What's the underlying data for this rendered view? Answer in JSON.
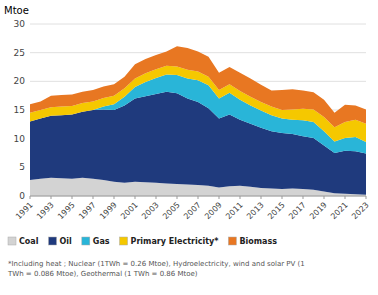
{
  "chart_data": {
    "type": "area",
    "stacked": true,
    "ylabel": "Mtoe",
    "x": [
      1991,
      1992,
      1993,
      1994,
      1995,
      1996,
      1997,
      1998,
      1999,
      2000,
      2001,
      2002,
      2003,
      2004,
      2005,
      2006,
      2007,
      2008,
      2009,
      2010,
      2011,
      2012,
      2013,
      2014,
      2015,
      2016,
      2017,
      2018,
      2019,
      2020,
      2021,
      2022,
      2023
    ],
    "series": [
      {
        "name": "Coal",
        "color": "#d3d3d3",
        "values": [
          2.8,
          3.0,
          3.2,
          3.1,
          3.0,
          3.2,
          3.0,
          2.8,
          2.5,
          2.3,
          2.5,
          2.4,
          2.3,
          2.2,
          2.1,
          2.0,
          1.9,
          1.8,
          1.5,
          1.7,
          1.8,
          1.6,
          1.4,
          1.3,
          1.2,
          1.3,
          1.2,
          1.1,
          0.8,
          0.5,
          0.4,
          0.3,
          0.2
        ]
      },
      {
        "name": "Oil",
        "color": "#1f3a7d",
        "values": [
          10.2,
          10.5,
          10.8,
          11.0,
          11.2,
          11.5,
          12.0,
          12.3,
          12.5,
          13.5,
          14.5,
          15.0,
          15.5,
          16.0,
          15.8,
          15.0,
          14.5,
          13.5,
          12.0,
          12.5,
          11.5,
          11.0,
          10.5,
          10.0,
          9.8,
          9.5,
          9.2,
          9.0,
          8.0,
          7.0,
          7.5,
          7.5,
          7.2
        ]
      },
      {
        "name": "Gas",
        "color": "#29b5d8",
        "values": [
          0.0,
          0.0,
          0.0,
          0.0,
          0.0,
          0.0,
          0.0,
          0.5,
          1.0,
          1.5,
          2.0,
          2.5,
          2.8,
          3.0,
          3.2,
          3.5,
          3.8,
          4.0,
          3.5,
          3.8,
          3.5,
          3.2,
          3.0,
          2.8,
          2.5,
          2.5,
          2.8,
          2.8,
          2.5,
          2.0,
          2.2,
          2.5,
          2.0
        ]
      },
      {
        "name": "Primary Electricity*",
        "color": "#f5c800",
        "values": [
          1.5,
          1.5,
          1.5,
          1.5,
          1.5,
          1.5,
          1.5,
          1.5,
          1.5,
          1.5,
          1.5,
          1.5,
          1.5,
          1.5,
          1.5,
          1.5,
          1.5,
          1.5,
          1.5,
          1.5,
          1.5,
          1.5,
          1.5,
          1.5,
          1.5,
          1.8,
          2.0,
          2.2,
          2.5,
          2.5,
          2.8,
          3.0,
          3.2
        ]
      },
      {
        "name": "Biomass",
        "color": "#e87722",
        "values": [
          1.5,
          1.5,
          2.0,
          2.0,
          2.0,
          2.0,
          2.0,
          2.0,
          2.0,
          2.0,
          2.5,
          2.5,
          2.5,
          2.5,
          3.5,
          3.8,
          3.5,
          3.5,
          3.0,
          3.0,
          3.2,
          3.2,
          3.0,
          2.8,
          3.5,
          3.5,
          3.2,
          3.0,
          3.0,
          2.5,
          3.0,
          2.5,
          2.5
        ]
      }
    ],
    "xlim": [
      1991,
      2023
    ],
    "xticks": [
      1991,
      1993,
      1995,
      1997,
      1999,
      2001,
      2003,
      2005,
      2007,
      2009,
      2011,
      2013,
      2015,
      2017,
      2019,
      2021,
      2023
    ],
    "ylim": [
      0,
      30
    ],
    "yticks": [
      0,
      5,
      10,
      15,
      20,
      25,
      30
    ],
    "grid": true,
    "legend": "bottom",
    "annotations": [
      "*Including heat ; Nuclear (1TWh = 0.26 Mtoe), Hydroelectricity, wind and solar PV (1",
      "TWh = 0.086 Mtoe), Geothermal (1 TWh = 0.86 Mtoe)"
    ]
  }
}
